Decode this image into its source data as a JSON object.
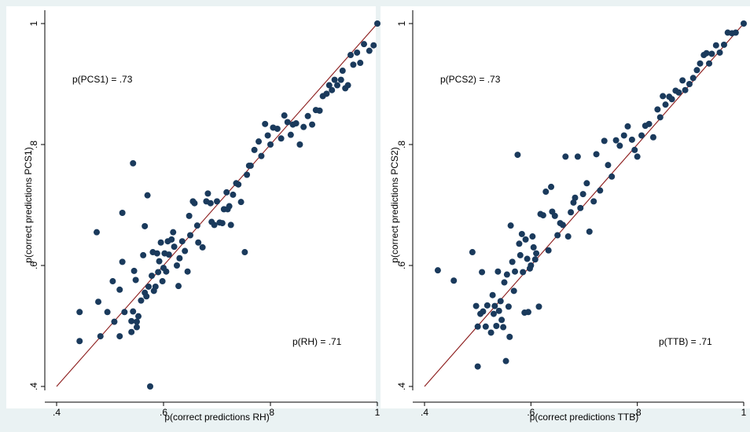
{
  "colors": {
    "background": "#eaf2f3",
    "panel": "#ffffff",
    "marker": "#1a3a5c",
    "line": "#8b1a1a"
  },
  "chart_data": [
    {
      "type": "scatter",
      "xlabel": "p(correct predictions RH)",
      "ylabel": "p(correct predictions PCS1)",
      "xlim": [
        0.4,
        1.0
      ],
      "ylim": [
        0.4,
        1.0
      ],
      "xticks": [
        ".4",
        ".6",
        ".8",
        "1"
      ],
      "yticks": [
        ".4",
        ".6",
        ".8",
        "1"
      ],
      "tick_values": [
        0.4,
        0.6,
        0.8,
        1.0
      ],
      "reference_line": "y = x",
      "annotations": [
        "p(PCS1) = .73",
        "p(RH) = .71"
      ],
      "x": [
        0.443,
        0.443,
        0.475,
        0.478,
        0.482,
        0.495,
        0.505,
        0.508,
        0.518,
        0.518,
        0.523,
        0.523,
        0.527,
        0.54,
        0.54,
        0.543,
        0.543,
        0.545,
        0.548,
        0.55,
        0.55,
        0.553,
        0.558,
        0.562,
        0.565,
        0.565,
        0.568,
        0.57,
        0.572,
        0.575,
        0.578,
        0.58,
        0.582,
        0.585,
        0.588,
        0.59,
        0.592,
        0.595,
        0.598,
        0.6,
        0.602,
        0.605,
        0.608,
        0.61,
        0.615,
        0.618,
        0.62,
        0.625,
        0.628,
        0.63,
        0.635,
        0.64,
        0.645,
        0.648,
        0.65,
        0.655,
        0.658,
        0.663,
        0.665,
        0.673,
        0.68,
        0.683,
        0.688,
        0.69,
        0.695,
        0.7,
        0.705,
        0.71,
        0.713,
        0.718,
        0.72,
        0.723,
        0.726,
        0.73,
        0.736,
        0.74,
        0.745,
        0.752,
        0.756,
        0.76,
        0.763,
        0.77,
        0.778,
        0.783,
        0.79,
        0.795,
        0.8,
        0.805,
        0.813,
        0.82,
        0.826,
        0.832,
        0.838,
        0.842,
        0.848,
        0.855,
        0.862,
        0.87,
        0.878,
        0.885,
        0.892,
        0.898,
        0.905,
        0.91,
        0.915,
        0.92,
        0.925,
        0.932,
        0.935,
        0.94,
        0.945,
        0.95,
        0.955,
        0.962,
        0.968,
        0.975,
        0.985,
        0.993,
        1.0
      ],
      "y": [
        0.475,
        0.523,
        0.655,
        0.54,
        0.483,
        0.523,
        0.574,
        0.507,
        0.483,
        0.56,
        0.606,
        0.687,
        0.523,
        0.49,
        0.508,
        0.769,
        0.524,
        0.591,
        0.576,
        0.498,
        0.507,
        0.516,
        0.542,
        0.617,
        0.665,
        0.555,
        0.549,
        0.716,
        0.565,
        0.4,
        0.583,
        0.622,
        0.558,
        0.565,
        0.62,
        0.589,
        0.607,
        0.638,
        0.574,
        0.596,
        0.62,
        0.59,
        0.64,
        0.618,
        0.643,
        0.655,
        0.631,
        0.6,
        0.566,
        0.612,
        0.64,
        0.624,
        0.59,
        0.682,
        0.65,
        0.706,
        0.703,
        0.666,
        0.638,
        0.63,
        0.706,
        0.719,
        0.703,
        0.672,
        0.667,
        0.706,
        0.671,
        0.67,
        0.693,
        0.721,
        0.693,
        0.698,
        0.667,
        0.717,
        0.736,
        0.734,
        0.705,
        0.622,
        0.75,
        0.765,
        0.765,
        0.791,
        0.805,
        0.781,
        0.834,
        0.815,
        0.8,
        0.828,
        0.826,
        0.81,
        0.848,
        0.837,
        0.816,
        0.833,
        0.835,
        0.8,
        0.829,
        0.847,
        0.833,
        0.857,
        0.856,
        0.88,
        0.884,
        0.898,
        0.89,
        0.907,
        0.898,
        0.907,
        0.922,
        0.893,
        0.898,
        0.948,
        0.932,
        0.952,
        0.935,
        0.966,
        0.955,
        0.964,
        1.0
      ]
    },
    {
      "type": "scatter",
      "xlabel": "p(correct predictions TTB)",
      "ylabel": "p(correct predictions PCS2)",
      "xlim": [
        0.4,
        1.0
      ],
      "ylim": [
        0.4,
        1.0
      ],
      "xticks": [
        ".4",
        ".6",
        ".8",
        "1"
      ],
      "yticks": [
        ".4",
        ".6",
        ".8",
        "1"
      ],
      "tick_values": [
        0.4,
        0.6,
        0.8,
        1.0
      ],
      "reference_line": "y = x",
      "annotations": [
        "p(PCS2) = .73",
        "p(TTB) = .71"
      ],
      "x": [
        0.425,
        0.455,
        0.49,
        0.497,
        0.5,
        0.5,
        0.505,
        0.508,
        0.51,
        0.515,
        0.518,
        0.525,
        0.528,
        0.53,
        0.532,
        0.535,
        0.538,
        0.54,
        0.543,
        0.545,
        0.548,
        0.55,
        0.553,
        0.555,
        0.558,
        0.56,
        0.562,
        0.565,
        0.568,
        0.57,
        0.575,
        0.578,
        0.58,
        0.583,
        0.585,
        0.588,
        0.59,
        0.593,
        0.595,
        0.598,
        0.6,
        0.603,
        0.605,
        0.608,
        0.61,
        0.615,
        0.618,
        0.623,
        0.628,
        0.633,
        0.638,
        0.64,
        0.645,
        0.65,
        0.655,
        0.66,
        0.665,
        0.67,
        0.675,
        0.68,
        0.683,
        0.688,
        0.693,
        0.698,
        0.705,
        0.71,
        0.718,
        0.723,
        0.73,
        0.738,
        0.745,
        0.752,
        0.76,
        0.767,
        0.775,
        0.782,
        0.79,
        0.795,
        0.8,
        0.808,
        0.815,
        0.822,
        0.83,
        0.838,
        0.843,
        0.848,
        0.853,
        0.86,
        0.865,
        0.872,
        0.878,
        0.885,
        0.89,
        0.898,
        0.905,
        0.912,
        0.918,
        0.925,
        0.93,
        0.935,
        0.94,
        0.948,
        0.955,
        0.963,
        0.97,
        0.978,
        0.985,
        1.0
      ],
      "y": [
        0.592,
        0.575,
        0.622,
        0.533,
        0.499,
        0.433,
        0.52,
        0.589,
        0.524,
        0.499,
        0.534,
        0.489,
        0.551,
        0.52,
        0.533,
        0.5,
        0.59,
        0.525,
        0.541,
        0.51,
        0.498,
        0.572,
        0.442,
        0.585,
        0.532,
        0.482,
        0.666,
        0.606,
        0.558,
        0.59,
        0.783,
        0.636,
        0.617,
        0.652,
        0.589,
        0.522,
        0.643,
        0.611,
        0.523,
        0.595,
        0.6,
        0.648,
        0.63,
        0.61,
        0.62,
        0.532,
        0.685,
        0.683,
        0.722,
        0.625,
        0.73,
        0.689,
        0.682,
        0.65,
        0.67,
        0.667,
        0.78,
        0.648,
        0.688,
        0.704,
        0.712,
        0.78,
        0.695,
        0.718,
        0.736,
        0.656,
        0.706,
        0.784,
        0.724,
        0.806,
        0.766,
        0.747,
        0.807,
        0.798,
        0.815,
        0.83,
        0.808,
        0.791,
        0.78,
        0.815,
        0.831,
        0.834,
        0.812,
        0.858,
        0.845,
        0.88,
        0.866,
        0.879,
        0.875,
        0.889,
        0.886,
        0.906,
        0.89,
        0.9,
        0.91,
        0.923,
        0.934,
        0.948,
        0.951,
        0.934,
        0.95,
        0.964,
        0.952,
        0.965,
        0.985,
        0.984,
        0.985,
        1.0
      ]
    }
  ]
}
